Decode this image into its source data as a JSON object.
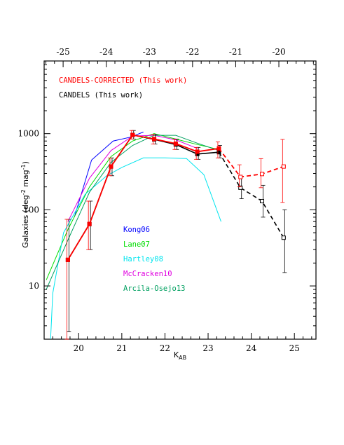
{
  "chart_data": {
    "type": "line",
    "xlabel": "K",
    "xlabel_sub": "AB",
    "ylabel": "Galaxies (deg",
    "ylabel_sup1": "-2",
    "ylabel_mid": " mag",
    "ylabel_sup2": "-1",
    "ylabel_end": ")",
    "xlim": [
      19.2,
      25.5
    ],
    "ylim": [
      2,
      9000
    ],
    "yscale": "log",
    "grid": false,
    "xticks": [
      20,
      21,
      22,
      23,
      24,
      25
    ],
    "yticks": [
      10,
      100,
      1000
    ],
    "top_axis": {
      "ticks": [
        {
          "at": 19.64,
          "label": "-25"
        },
        {
          "at": 20.64,
          "label": "-24"
        },
        {
          "at": 21.64,
          "label": "-23"
        },
        {
          "at": 22.64,
          "label": "-22"
        },
        {
          "at": 23.64,
          "label": "-21"
        },
        {
          "at": 24.64,
          "label": "-20"
        }
      ]
    },
    "legend_top": [
      {
        "name": "CANDELS-CORRECTED (This work)",
        "color": "#ff0000"
      },
      {
        "name": "CANDELS (This work)",
        "color": "#000000"
      }
    ],
    "legend_mid": [
      {
        "name": "Kong06",
        "color": "#0000ff"
      },
      {
        "name": "Lane07",
        "color": "#00dd00"
      },
      {
        "name": "Hartley08",
        "color": "#00e5ee"
      },
      {
        "name": "McCracken10",
        "color": "#e000e0"
      },
      {
        "name": "Arcila-Osejo13",
        "color": "#00a060"
      }
    ],
    "series": [
      {
        "name": "Kong06",
        "color": "#0000ff",
        "x": [
          19.9,
          20.3,
          20.8,
          21.2,
          21.5
        ],
        "y": [
          80,
          450,
          800,
          900,
          1050
        ]
      },
      {
        "name": "Lane07",
        "color": "#00dd00",
        "x": [
          19.25,
          19.75,
          20.25,
          20.75,
          21.25,
          21.75,
          22.25,
          22.75,
          23.25
        ],
        "y": [
          12,
          55,
          200,
          500,
          800,
          1000,
          850,
          720,
          620
        ]
      },
      {
        "name": "Hartley08",
        "color": "#00e5ee",
        "x": [
          19.35,
          19.4,
          19.65,
          20.15,
          20.65,
          21.0,
          21.5,
          22.0,
          22.5,
          22.9,
          23.3
        ],
        "y": [
          2,
          8,
          50,
          160,
          280,
          360,
          480,
          480,
          470,
          290,
          70
        ]
      },
      {
        "name": "McCracken10",
        "color": "#e000e0",
        "x": [
          19.75,
          20.25,
          20.75,
          21.25,
          21.75,
          22.25,
          22.75
        ],
        "y": [
          70,
          260,
          600,
          930,
          950,
          830,
          640
        ]
      },
      {
        "name": "Arcila-Osejo13",
        "color": "#00a060",
        "x": [
          19.25,
          19.75,
          20.25,
          20.75,
          21.25,
          21.75,
          22.25,
          22.75,
          23.25
        ],
        "y": [
          9,
          40,
          170,
          420,
          700,
          950,
          950,
          750,
          600
        ]
      }
    ],
    "candels": {
      "name": "CANDELS (This work)",
      "color": "#000000",
      "x": [
        19.75,
        20.25,
        20.75,
        21.25,
        21.75,
        22.25,
        22.75,
        23.25,
        23.75,
        24.25,
        24.75
      ],
      "y": [
        22,
        65,
        370,
        960,
        840,
        720,
        540,
        570,
        195,
        130,
        43
      ],
      "yerr_low": [
        2.5,
        30,
        280,
        850,
        730,
        620,
        460,
        480,
        140,
        80,
        15
      ],
      "yerr_high": [
        75,
        130,
        480,
        1100,
        980,
        850,
        660,
        700,
        270,
        210,
        100
      ],
      "dashed_from_index": 8
    },
    "corrected": {
      "name": "CANDELS-CORRECTED (This work)",
      "color": "#ff0000",
      "x": [
        19.75,
        20.25,
        20.75,
        21.25,
        21.75,
        22.25,
        22.75,
        23.25,
        23.75,
        24.25,
        24.75
      ],
      "y": [
        22,
        65,
        370,
        960,
        850,
        740,
        580,
        640,
        270,
        295,
        370
      ],
      "yerr_low": [
        2,
        30,
        280,
        850,
        730,
        620,
        460,
        480,
        200,
        195,
        125
      ],
      "yerr_high": [
        75,
        130,
        480,
        1100,
        980,
        850,
        660,
        780,
        390,
        470,
        840
      ],
      "dashed_from_index": 8
    }
  }
}
